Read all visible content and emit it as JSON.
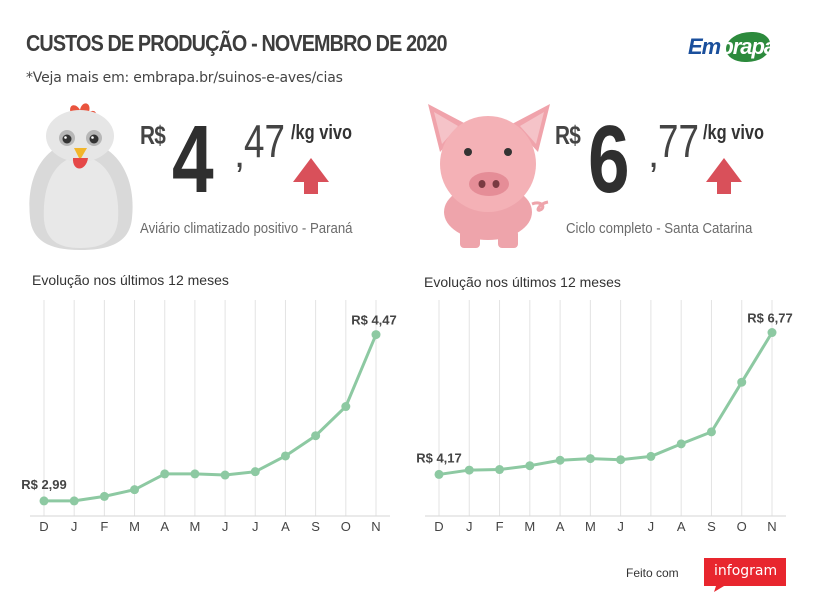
{
  "header": {
    "title": "CUSTOS DE PRODUÇÃO - NOVEMBRO DE 2020",
    "subtitle": "*Veja mais em: embrapa.br/suinos-e-aves/cias",
    "logo_text_1": "Em",
    "logo_text_2": "brapa"
  },
  "chicken": {
    "currency": "R$",
    "integer": "4",
    "comma": ",",
    "decimals": "47",
    "unit": "/kg vivo",
    "caption": "Aviário climatizado positivo - Paraná",
    "trend": "up",
    "chart_title": "Evolução nos últimos 12 meses"
  },
  "pig": {
    "currency": "R$",
    "integer": "6",
    "comma": ",",
    "decimals": "77",
    "unit": "/kg vivo",
    "caption": "Ciclo completo - Santa Catarina",
    "trend": "up",
    "chart_title": "Evolução nos últimos 12 meses"
  },
  "colors": {
    "line": "#8dc9a2",
    "arrow": "#d9505a",
    "grid": "#e3e3e3"
  },
  "chart_data": [
    {
      "type": "line",
      "categories": [
        "D",
        "J",
        "F",
        "M",
        "A",
        "M",
        "J",
        "J",
        "A",
        "S",
        "O",
        "N"
      ],
      "values": [
        2.99,
        2.99,
        3.03,
        3.09,
        3.23,
        3.23,
        3.22,
        3.25,
        3.39,
        3.57,
        3.83,
        4.47
      ],
      "first_label": "R$ 2,99",
      "last_label": "R$ 4,47",
      "ylim": [
        2.9,
        4.6
      ],
      "grid": "vertical"
    },
    {
      "type": "line",
      "categories": [
        "D",
        "J",
        "F",
        "M",
        "A",
        "M",
        "J",
        "J",
        "A",
        "S",
        "O",
        "N"
      ],
      "values": [
        4.17,
        4.25,
        4.26,
        4.33,
        4.43,
        4.46,
        4.44,
        4.5,
        4.73,
        4.95,
        5.86,
        6.77
      ],
      "first_label": "R$ 4,17",
      "last_label": "R$ 6,77",
      "ylim": [
        3.5,
        7.0
      ],
      "grid": "vertical"
    }
  ],
  "footer": {
    "made_with": "Feito com",
    "brand": "infogram"
  }
}
